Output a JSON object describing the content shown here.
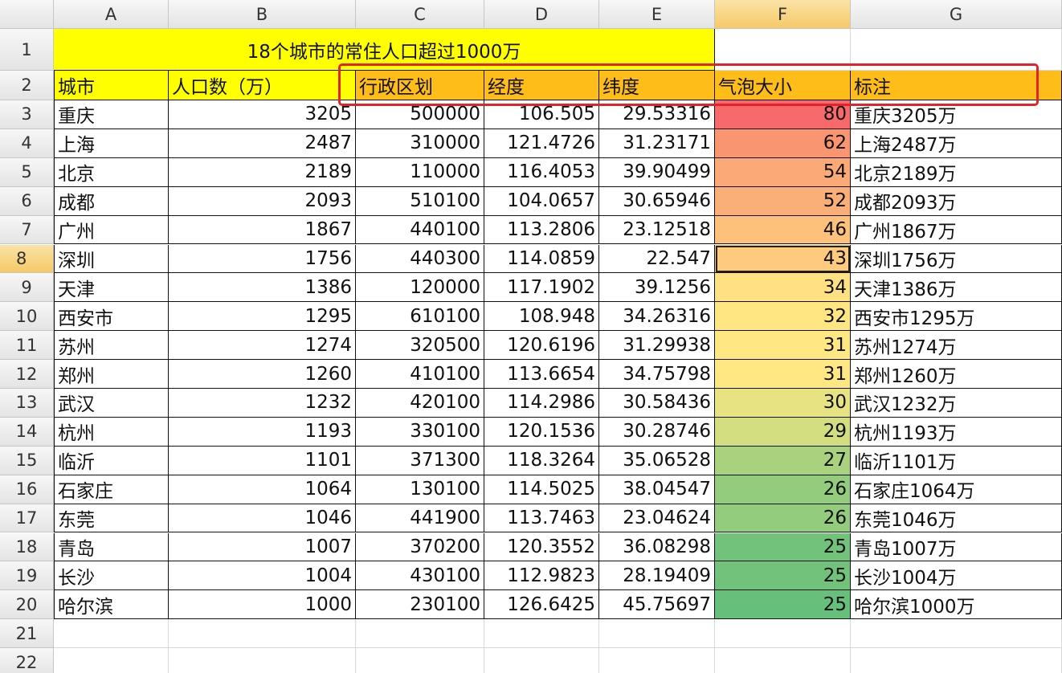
{
  "column_headers": [
    "A",
    "B",
    "C",
    "D",
    "E",
    "F",
    "G"
  ],
  "row_headers": [
    "1",
    "2",
    "3",
    "4",
    "5",
    "6",
    "7",
    "8",
    "9",
    "10",
    "11",
    "12",
    "13",
    "14",
    "15",
    "16",
    "17",
    "18",
    "19",
    "20",
    "21",
    "22"
  ],
  "title": "18个城市的常住人口超过1000万",
  "table": {
    "header": [
      "城市",
      "人口数（万）",
      "行政区划",
      "经度",
      "纬度",
      "气泡大小",
      "标注"
    ],
    "rows": [
      [
        "重庆",
        3205,
        500000,
        106.505,
        29.53316,
        80,
        "重庆3205万"
      ],
      [
        "上海",
        2487,
        310000,
        121.4726,
        31.23171,
        62,
        "上海2487万"
      ],
      [
        "北京",
        2189,
        110000,
        116.4053,
        39.90499,
        54,
        "北京2189万"
      ],
      [
        "成都",
        2093,
        510100,
        104.0657,
        30.65946,
        52,
        "成都2093万"
      ],
      [
        "广州",
        1867,
        440100,
        113.2806,
        23.12518,
        46,
        "广州1867万"
      ],
      [
        "深圳",
        1756,
        440300,
        114.0859,
        22.547,
        43,
        "深圳1756万"
      ],
      [
        "天津",
        1386,
        120000,
        117.1902,
        39.1256,
        34,
        "天津1386万"
      ],
      [
        "西安市",
        1295,
        610100,
        108.948,
        34.26316,
        32,
        "西安市1295万"
      ],
      [
        "苏州",
        1274,
        320500,
        120.6196,
        31.29938,
        31,
        "苏州1274万"
      ],
      [
        "郑州",
        1260,
        410100,
        113.6654,
        34.75798,
        31,
        "郑州1260万"
      ],
      [
        "武汉",
        1232,
        420100,
        114.2986,
        30.58436,
        30,
        "武汉1232万"
      ],
      [
        "杭州",
        1193,
        330100,
        120.1536,
        30.28746,
        29,
        "杭州1193万"
      ],
      [
        "临沂",
        1101,
        371300,
        118.3264,
        35.06528,
        27,
        "临沂1101万"
      ],
      [
        "石家庄",
        1064,
        130100,
        114.5025,
        38.04547,
        26,
        "石家庄1064万"
      ],
      [
        "东莞",
        1046,
        441900,
        113.7463,
        23.04624,
        26,
        "东莞1046万"
      ],
      [
        "青岛",
        1007,
        370200,
        120.3552,
        36.08298,
        25,
        "青岛1007万"
      ],
      [
        "长沙",
        1004,
        430100,
        112.9823,
        28.19409,
        25,
        "长沙1004万"
      ],
      [
        "哈尔滨",
        1000,
        230100,
        126.6425,
        45.75697,
        25,
        "哈尔滨1000万"
      ]
    ]
  },
  "heat_colors": [
    "#f8696b",
    "#fa9572",
    "#fbaa77",
    "#fbaf78",
    "#fdc17c",
    "#fdca7e",
    "#fee182",
    "#ffe683",
    "#ffe884",
    "#ffe884",
    "#e8e382",
    "#d3de81",
    "#a9d27f",
    "#94cc7e",
    "#94cc7e",
    "#72c27b",
    "#72c27b",
    "#66bf7b"
  ],
  "selected_cell": "F8"
}
